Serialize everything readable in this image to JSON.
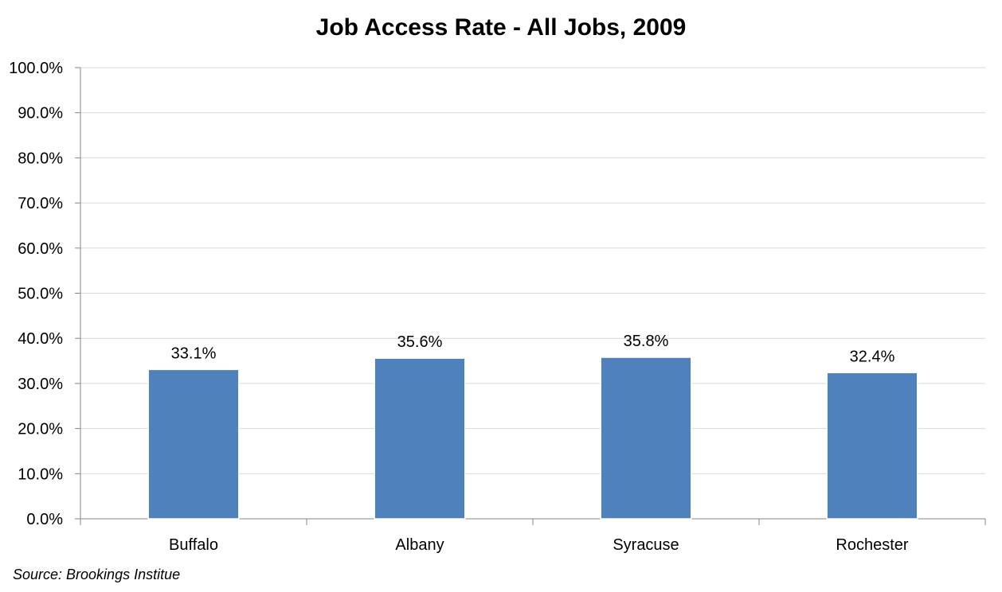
{
  "chart_data": {
    "type": "bar",
    "title": "Job Access Rate - All Jobs, 2009",
    "categories": [
      "Buffalo",
      "Albany",
      "Syracuse",
      "Rochester"
    ],
    "values": [
      33.1,
      35.6,
      35.8,
      32.4
    ],
    "data_labels": [
      "33.1%",
      "35.6%",
      "35.8%",
      "32.4%"
    ],
    "y_ticks": [
      "0.0%",
      "10.0%",
      "20.0%",
      "30.0%",
      "40.0%",
      "50.0%",
      "60.0%",
      "70.0%",
      "80.0%",
      "90.0%",
      "100.0%"
    ],
    "ylim": [
      0,
      100
    ],
    "grid": true,
    "bar_color": "#4F81BD",
    "legend": "none",
    "source": "Source: Brookings Institue"
  }
}
